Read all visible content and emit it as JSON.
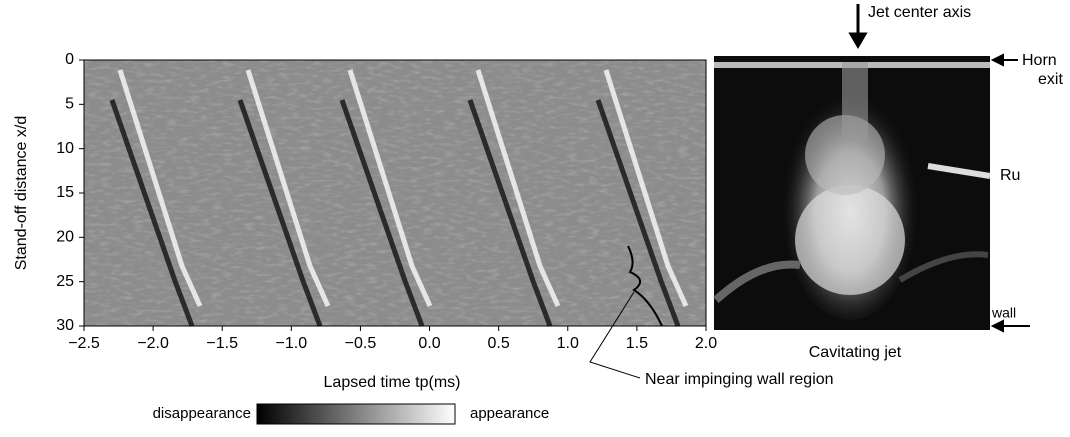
{
  "chart_data": {
    "type": "heatmap",
    "x_label": "Lapsed time tp(ms)",
    "y_label": "Stand-off distance x/d",
    "xlim": [
      -2.5,
      2.0
    ],
    "xticks": [
      {
        "value": -2.5,
        "label": "−2.5"
      },
      {
        "value": -2.0,
        "label": "−2.0"
      },
      {
        "value": -1.5,
        "label": "−1.5"
      },
      {
        "value": -1.0,
        "label": "−1.0"
      },
      {
        "value": -0.5,
        "label": "−0.5"
      },
      {
        "value": 0.0,
        "label": "0.0"
      },
      {
        "value": 0.5,
        "label": "0.5"
      },
      {
        "value": 1.0,
        "label": "1.0"
      },
      {
        "value": 1.5,
        "label": "1.5"
      },
      {
        "value": 2.0,
        "label": "2.0"
      }
    ],
    "ylim": [
      30,
      0
    ],
    "yticks": [
      0,
      5,
      10,
      15,
      20,
      25,
      30
    ],
    "colorbar": {
      "low_label": "disappearance",
      "high_label": "appearance"
    },
    "wall_annotation": "Near impinging wall region",
    "photo": {
      "title": "Cavitating jet",
      "axis_label": "Jet center axis",
      "horn_label": [
        "Horn",
        "exit"
      ],
      "probe_label": "Ru",
      "wall_label": "wall"
    }
  }
}
